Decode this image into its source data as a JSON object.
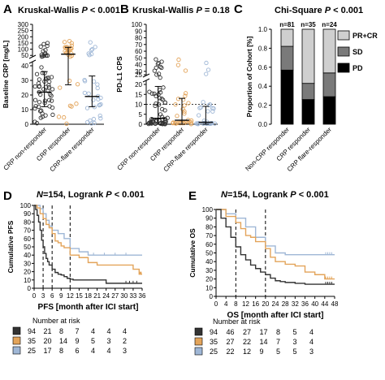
{
  "colors": {
    "grey": "#333333",
    "orange": "#E3A45A",
    "blue": "#9FB7D6",
    "black": "#000000",
    "pd": "#000000",
    "sd": "#7a7a7a",
    "prcr": "#cfcfcf"
  },
  "chart_data": [
    {
      "panel": "A",
      "type": "scatter",
      "title_prefix": "Kruskal-Wallis ",
      "title_p": "P",
      "title_suffix": " < 0.001",
      "ylabel": "Baseline CRP [mg/L]",
      "categories": [
        "CRP non-responder",
        "CRP responder",
        "CRP-flare responder"
      ],
      "lower_ticks": [
        0,
        10,
        20,
        30,
        40
      ],
      "upper_ticks": [
        50,
        100,
        150,
        200,
        250,
        300
      ],
      "axis_break": [
        40,
        45
      ],
      "ylim": [
        0,
        300
      ],
      "summary": [
        {
          "category": "CRP non-responder",
          "median": 22,
          "q1": 12,
          "q3": 36
        },
        {
          "category": "CRP responder",
          "median": 60,
          "q1": 27,
          "q3": 115
        },
        {
          "category": "CRP-flare responder",
          "median": 19,
          "q1": 12,
          "q3": 33
        }
      ]
    },
    {
      "panel": "B",
      "type": "scatter",
      "title_prefix": "Kruskal-Wallis ",
      "title_p": "P",
      "title_suffix": " = 0.18",
      "ylabel": "PD-L1 CPS",
      "categories": [
        "CRP non-responder",
        "CRP responder",
        "CRP-flare responder"
      ],
      "lower_ticks": [
        0,
        5,
        10,
        15,
        20
      ],
      "upper_ticks": [
        25,
        30,
        40,
        50,
        60,
        70,
        80,
        90,
        100
      ],
      "axis_break": [
        20,
        25
      ],
      "ylim": [
        0,
        100
      ],
      "reference_line": 10,
      "summary": [
        {
          "category": "CRP non-responder",
          "median": 3,
          "q1": 0,
          "q3": 19
        },
        {
          "category": "CRP responder",
          "median": 2,
          "q1": 0,
          "q3": 13
        },
        {
          "category": "CRP-flare responder",
          "median": 1,
          "q1": 0,
          "q3": 9
        }
      ]
    },
    {
      "panel": "C",
      "type": "bar",
      "stacked": true,
      "title_prefix": "Chi-Square ",
      "title_p": "P",
      "title_suffix": " < 0.001",
      "ylabel": "Proportion of Cohort [%]",
      "categories": [
        "Non-CRP responder",
        "CRP responder",
        "CRP flare-responder"
      ],
      "n_labels": [
        "n=81",
        "n=35",
        "n=24"
      ],
      "ylim": [
        0,
        1.0
      ],
      "yticks": [
        "0.0",
        "0.2",
        "0.4",
        "0.6",
        "0.8",
        "1.0"
      ],
      "series": [
        {
          "name": "PD",
          "values": [
            0.57,
            0.26,
            0.29
          ]
        },
        {
          "name": "SD",
          "values": [
            0.25,
            0.17,
            0.25
          ]
        },
        {
          "name": "PR+CR",
          "values": [
            0.18,
            0.57,
            0.46
          ]
        }
      ],
      "legend": [
        "PR+CR",
        "SD",
        "PD"
      ]
    },
    {
      "panel": "D",
      "type": "line",
      "title_prefix": "",
      "title_n": "N",
      "title_mid": "=154, Logrank ",
      "title_p": "P",
      "title_suffix": " < 0.001",
      "xlabel": "PFS [month after ICI start]",
      "ylabel": "Cumulative PFS",
      "xticks": [
        0,
        3,
        6,
        9,
        12,
        15,
        18,
        21,
        24,
        27,
        30,
        33,
        36
      ],
      "yticks": [
        0,
        10,
        20,
        30,
        40,
        50,
        60,
        70,
        80,
        90,
        100
      ],
      "xlim": [
        0,
        36
      ],
      "ylim": [
        0,
        100
      ],
      "vlines": [
        3,
        6,
        12
      ],
      "series": [
        {
          "name": "CRP non-responder",
          "x": [
            0,
            0.5,
            1,
            1.5,
            2,
            2.5,
            3,
            3.5,
            4,
            4.5,
            5,
            6,
            7,
            8,
            9,
            10,
            11,
            12,
            13,
            15,
            18,
            20,
            24,
            27,
            30,
            36
          ],
          "y": [
            100,
            95,
            88,
            80,
            70,
            58,
            50,
            42,
            36,
            32,
            28,
            23,
            19,
            17,
            16,
            14,
            12,
            11,
            10,
            10,
            10,
            10,
            6,
            6,
            6,
            6
          ]
        },
        {
          "name": "CRP responder",
          "x": [
            0,
            1,
            2,
            3,
            4,
            5,
            6,
            7,
            8,
            9,
            10,
            12,
            15,
            18,
            21,
            27,
            30,
            33,
            35,
            36
          ],
          "y": [
            100,
            97,
            90,
            84,
            77,
            73,
            66,
            57,
            55,
            51,
            49,
            40,
            37,
            31,
            28,
            28,
            28,
            23,
            17,
            17
          ]
        },
        {
          "name": "CRP-flare responder",
          "x": [
            0,
            1,
            2,
            3,
            4,
            5,
            6,
            8,
            10,
            12,
            15,
            18,
            36
          ],
          "y": [
            100,
            100,
            96,
            90,
            82,
            75,
            70,
            66,
            60,
            48,
            44,
            40,
            40
          ]
        }
      ],
      "risk_label": "Number at risk",
      "risk_table": [
        {
          "name": "CRP non-responder",
          "values": [
            94,
            21,
            8,
            7,
            4,
            4,
            4
          ]
        },
        {
          "name": "CRP responder",
          "values": [
            35,
            20,
            14,
            9,
            5,
            3,
            2
          ]
        },
        {
          "name": "CRP-flare responder",
          "values": [
            25,
            17,
            8,
            6,
            4,
            4,
            3
          ]
        }
      ]
    },
    {
      "panel": "E",
      "type": "line",
      "title_prefix": "",
      "title_n": "N",
      "title_mid": "=154, Logrank ",
      "title_p": "P",
      "title_suffix": " < 0.001",
      "xlabel": "OS [month after ICI start]",
      "ylabel": "Cumulative OS",
      "xticks": [
        0,
        4,
        8,
        12,
        16,
        20,
        24,
        28,
        32,
        36,
        40,
        44,
        48
      ],
      "yticks": [
        0,
        10,
        20,
        30,
        40,
        50,
        60,
        70,
        80,
        90,
        100
      ],
      "xlim": [
        0,
        48
      ],
      "ylim": [
        0,
        100
      ],
      "vlines": [
        8,
        20
      ],
      "series": [
        {
          "name": "CRP non-responder",
          "x": [
            0,
            2,
            4,
            6,
            8,
            10,
            12,
            14,
            16,
            18,
            20,
            22,
            24,
            26,
            28,
            32,
            36,
            40,
            44,
            48
          ],
          "y": [
            100,
            90,
            80,
            68,
            57,
            48,
            42,
            36,
            32,
            28,
            25,
            21,
            18,
            17,
            16,
            15,
            14,
            14,
            14,
            14
          ]
        },
        {
          "name": "CRP responder",
          "x": [
            0,
            4,
            8,
            10,
            12,
            14,
            16,
            20,
            22,
            24,
            28,
            32,
            36,
            40,
            44,
            48
          ],
          "y": [
            100,
            92,
            85,
            78,
            70,
            68,
            63,
            55,
            45,
            40,
            37,
            35,
            28,
            25,
            20,
            20
          ]
        },
        {
          "name": "CRP-flare responder",
          "x": [
            0,
            4,
            8,
            12,
            16,
            20,
            24,
            28,
            32,
            36,
            40,
            44,
            48
          ],
          "y": [
            100,
            95,
            90,
            80,
            68,
            58,
            50,
            48,
            48,
            48,
            48,
            48,
            48
          ]
        }
      ],
      "risk_label": "Number at risk",
      "risk_table": [
        {
          "name": "CRP non-responder",
          "values": [
            94,
            46,
            27,
            17,
            8,
            5,
            4
          ]
        },
        {
          "name": "CRP responder",
          "values": [
            35,
            27,
            22,
            14,
            7,
            3,
            4
          ]
        },
        {
          "name": "CRP-flare responder",
          "values": [
            25,
            22,
            12,
            9,
            5,
            5,
            3
          ]
        }
      ]
    }
  ]
}
